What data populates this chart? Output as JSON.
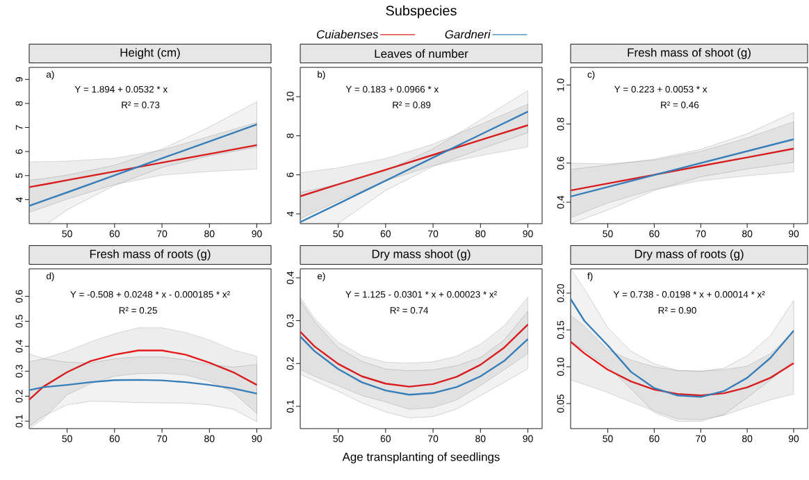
{
  "chart_data": [
    {
      "type": "line",
      "title": "Height (cm)",
      "annotations": [
        "a)",
        "Y = 1.894 + 0.0532 * x",
        "R² = 0.73"
      ],
      "x": [
        42,
        46,
        50,
        60,
        70,
        80,
        90
      ],
      "xlim": [
        42,
        93
      ],
      "ylim": [
        3,
        9.5
      ],
      "xticks": [
        50,
        60,
        70,
        80,
        90
      ],
      "yticks": [
        4,
        5,
        6,
        7,
        8,
        9
      ],
      "series": [
        {
          "color": "#e41a1c",
          "values": [
            4.52,
            4.66,
            4.81,
            5.17,
            5.54,
            5.9,
            6.27
          ],
          "lower": [
            3.47,
            3.74,
            4.02,
            4.62,
            5.02,
            5.17,
            5.27
          ],
          "upper": [
            5.57,
            5.58,
            5.6,
            5.72,
            6.06,
            6.63,
            7.21
          ]
        },
        {
          "color": "#377eb8",
          "values": [
            3.74,
            4.02,
            4.3,
            5.01,
            5.72,
            6.42,
            7.13
          ],
          "lower": [
            3.0,
            3.02,
            3.58,
            4.59,
            5.34,
            5.82,
            6.18
          ],
          "upper": [
            4.8,
            4.9,
            5.02,
            5.43,
            6.1,
            7.02,
            8.07
          ]
        }
      ]
    },
    {
      "type": "line",
      "title": "Leaves of number",
      "annotations": [
        "b)",
        "Y = 0.183 + 0.0966 * x",
        "R² = 0.89"
      ],
      "legend_title": "Subspecies",
      "legend": "top",
      "x": [
        42,
        50,
        60,
        70,
        80,
        90
      ],
      "xlim": [
        42,
        93
      ],
      "ylim": [
        3.5,
        11.5
      ],
      "xticks": [
        50,
        60,
        70,
        80,
        90
      ],
      "yticks": [
        4,
        6,
        8,
        10
      ],
      "series": [
        {
          "name": "Cuiabenses",
          "color": "#e41a1c",
          "values": [
            4.9,
            5.51,
            6.26,
            7.02,
            7.78,
            8.54
          ],
          "lower": [
            3.76,
            4.66,
            5.69,
            6.47,
            6.98,
            7.43
          ],
          "upper": [
            6.1,
            6.36,
            6.83,
            7.57,
            8.58,
            9.62
          ]
        },
        {
          "name": "Gardneri",
          "color": "#377eb8",
          "values": [
            3.58,
            4.52,
            5.7,
            6.88,
            8.06,
            9.24
          ],
          "lower": [
            3.5,
            3.52,
            5.2,
            6.43,
            7.31,
            8.16
          ],
          "upper": [
            5.09,
            5.52,
            6.2,
            7.33,
            8.81,
            10.31
          ]
        }
      ]
    },
    {
      "type": "line",
      "title": "Fresh mass of shoot (g)",
      "annotations": [
        "c)",
        "Y = 0.223 + 0.0053 * x",
        "R² = 0.46"
      ],
      "x": [
        42,
        50,
        60,
        70,
        80,
        90
      ],
      "xlim": [
        42,
        93
      ],
      "ylim": [
        0.29,
        1.09
      ],
      "xticks": [
        50,
        60,
        70,
        80,
        90
      ],
      "yticks": [
        0.4,
        0.6,
        0.8,
        {
          "value": 1,
          "label": "1.0"
        }
      ],
      "series": [
        {
          "color": "#e41a1c",
          "values": [
            0.46,
            0.496,
            0.54,
            0.585,
            0.629,
            0.674
          ],
          "lower": [
            0.32,
            0.396,
            0.465,
            0.51,
            0.535,
            0.556
          ],
          "upper": [
            0.6,
            0.596,
            0.615,
            0.66,
            0.729,
            0.812
          ]
        },
        {
          "color": "#377eb8",
          "values": [
            0.429,
            0.478,
            0.539,
            0.6,
            0.661,
            0.722
          ],
          "lower": [
            0.29,
            0.36,
            0.46,
            0.53,
            0.57,
            0.604
          ],
          "upper": [
            0.567,
            0.59,
            0.62,
            0.67,
            0.75,
            0.859
          ]
        }
      ]
    },
    {
      "type": "line",
      "title": "Fresh mass of roots (g)",
      "annotations": [
        "d)",
        "Y = -0.508 + 0.0248 * x - 0.000185 * x²",
        "R² = 0.25"
      ],
      "x": [
        42,
        45,
        50,
        55,
        60,
        65,
        70,
        75,
        80,
        85,
        90
      ],
      "xlim": [
        42,
        93
      ],
      "ylim": [
        0.07,
        0.71
      ],
      "xticks": [
        50,
        60,
        70,
        80,
        90
      ],
      "yticks": [
        0.1,
        0.2,
        0.3,
        0.4,
        0.5,
        0.6
      ],
      "series": [
        {
          "color": "#e41a1c",
          "values": [
            0.186,
            0.238,
            0.296,
            0.341,
            0.366,
            0.383,
            0.383,
            0.366,
            0.334,
            0.296,
            0.245
          ],
          "lower": [
            0.07,
            0.11,
            0.205,
            0.25,
            0.28,
            0.29,
            0.292,
            0.285,
            0.26,
            0.215,
            0.13
          ],
          "upper": [
            0.338,
            0.35,
            0.38,
            0.418,
            0.45,
            0.474,
            0.474,
            0.455,
            0.425,
            0.385,
            0.36
          ]
        },
        {
          "color": "#377eb8",
          "values": [
            0.224,
            0.236,
            0.245,
            0.256,
            0.264,
            0.265,
            0.263,
            0.256,
            0.245,
            0.231,
            0.21
          ],
          "lower": [
            0.08,
            0.12,
            0.165,
            0.18,
            0.178,
            0.174,
            0.173,
            0.172,
            0.165,
            0.148,
            0.098
          ],
          "upper": [
            0.369,
            0.35,
            0.336,
            0.333,
            0.35,
            0.357,
            0.357,
            0.345,
            0.327,
            0.316,
            0.327
          ]
        }
      ]
    },
    {
      "type": "line",
      "title": "Dry mass shoot (g)",
      "xlabel": "Age transplanting of seedlings",
      "annotations": [
        "e)",
        "Y = 1.125 - 0.0301 * x + 0.00023 * x²",
        "R² = 0.74"
      ],
      "x": [
        42,
        45,
        50,
        55,
        60,
        65,
        70,
        75,
        80,
        85,
        90
      ],
      "xlim": [
        42,
        93
      ],
      "ylim": [
        0.048,
        0.421
      ],
      "xticks": [
        50,
        60,
        70,
        80,
        90
      ],
      "yticks": [
        0.1,
        0.2,
        0.3,
        0.4
      ],
      "series": [
        {
          "color": "#e41a1c",
          "values": [
            0.274,
            0.24,
            0.199,
            0.17,
            0.153,
            0.146,
            0.152,
            0.169,
            0.197,
            0.237,
            0.291
          ],
          "lower": [
            0.186,
            0.17,
            0.148,
            0.125,
            0.11,
            0.093,
            0.097,
            0.115,
            0.148,
            0.185,
            0.223
          ],
          "upper": [
            0.355,
            0.305,
            0.25,
            0.218,
            0.203,
            0.201,
            0.204,
            0.217,
            0.245,
            0.288,
            0.355
          ]
        },
        {
          "color": "#377eb8",
          "values": [
            0.263,
            0.229,
            0.187,
            0.156,
            0.137,
            0.127,
            0.131,
            0.145,
            0.17,
            0.206,
            0.257
          ],
          "lower": [
            0.175,
            0.16,
            0.135,
            0.108,
            0.087,
            0.073,
            0.076,
            0.094,
            0.125,
            0.156,
            0.188
          ],
          "upper": [
            0.347,
            0.298,
            0.237,
            0.205,
            0.187,
            0.183,
            0.185,
            0.195,
            0.214,
            0.255,
            0.322
          ]
        }
      ]
    },
    {
      "type": "line",
      "title": "Dry mass of roots (g)",
      "annotations": [
        "f)",
        "Y = 0.738 - 0.0198 * x + 0.00014 * x²",
        "R² = 0.90"
      ],
      "x": [
        42,
        45,
        50,
        55,
        60,
        65,
        70,
        75,
        80,
        85,
        90
      ],
      "xlim": [
        42,
        93
      ],
      "ylim": [
        0.016,
        0.233
      ],
      "xticks": [
        50,
        60,
        70,
        80,
        90
      ],
      "yticks": [
        0.05,
        {
          "value": 0.1,
          "label": "0.10"
        },
        0.15,
        {
          "value": 0.2,
          "label": "0.20"
        }
      ],
      "series": [
        {
          "color": "#e41a1c",
          "values": [
            0.134,
            0.118,
            0.096,
            0.08,
            0.069,
            0.063,
            0.061,
            0.064,
            0.072,
            0.085,
            0.105
          ],
          "lower": [
            0.082,
            0.076,
            0.065,
            0.052,
            0.04,
            0.029,
            0.028,
            0.034,
            0.045,
            0.055,
            0.063
          ],
          "upper": [
            0.17,
            0.155,
            0.123,
            0.109,
            0.1,
            0.095,
            0.094,
            0.096,
            0.101,
            0.118,
            0.147
          ]
        },
        {
          "color": "#377eb8",
          "values": [
            0.192,
            0.162,
            0.129,
            0.093,
            0.071,
            0.061,
            0.059,
            0.067,
            0.085,
            0.112,
            0.149
          ],
          "lower": [
            0.135,
            0.122,
            0.1,
            0.07,
            0.038,
            0.026,
            0.026,
            0.035,
            0.058,
            0.082,
            0.108
          ],
          "upper": [
            0.233,
            0.205,
            0.153,
            0.121,
            0.104,
            0.095,
            0.094,
            0.098,
            0.115,
            0.142,
            0.19
          ]
        }
      ]
    }
  ]
}
